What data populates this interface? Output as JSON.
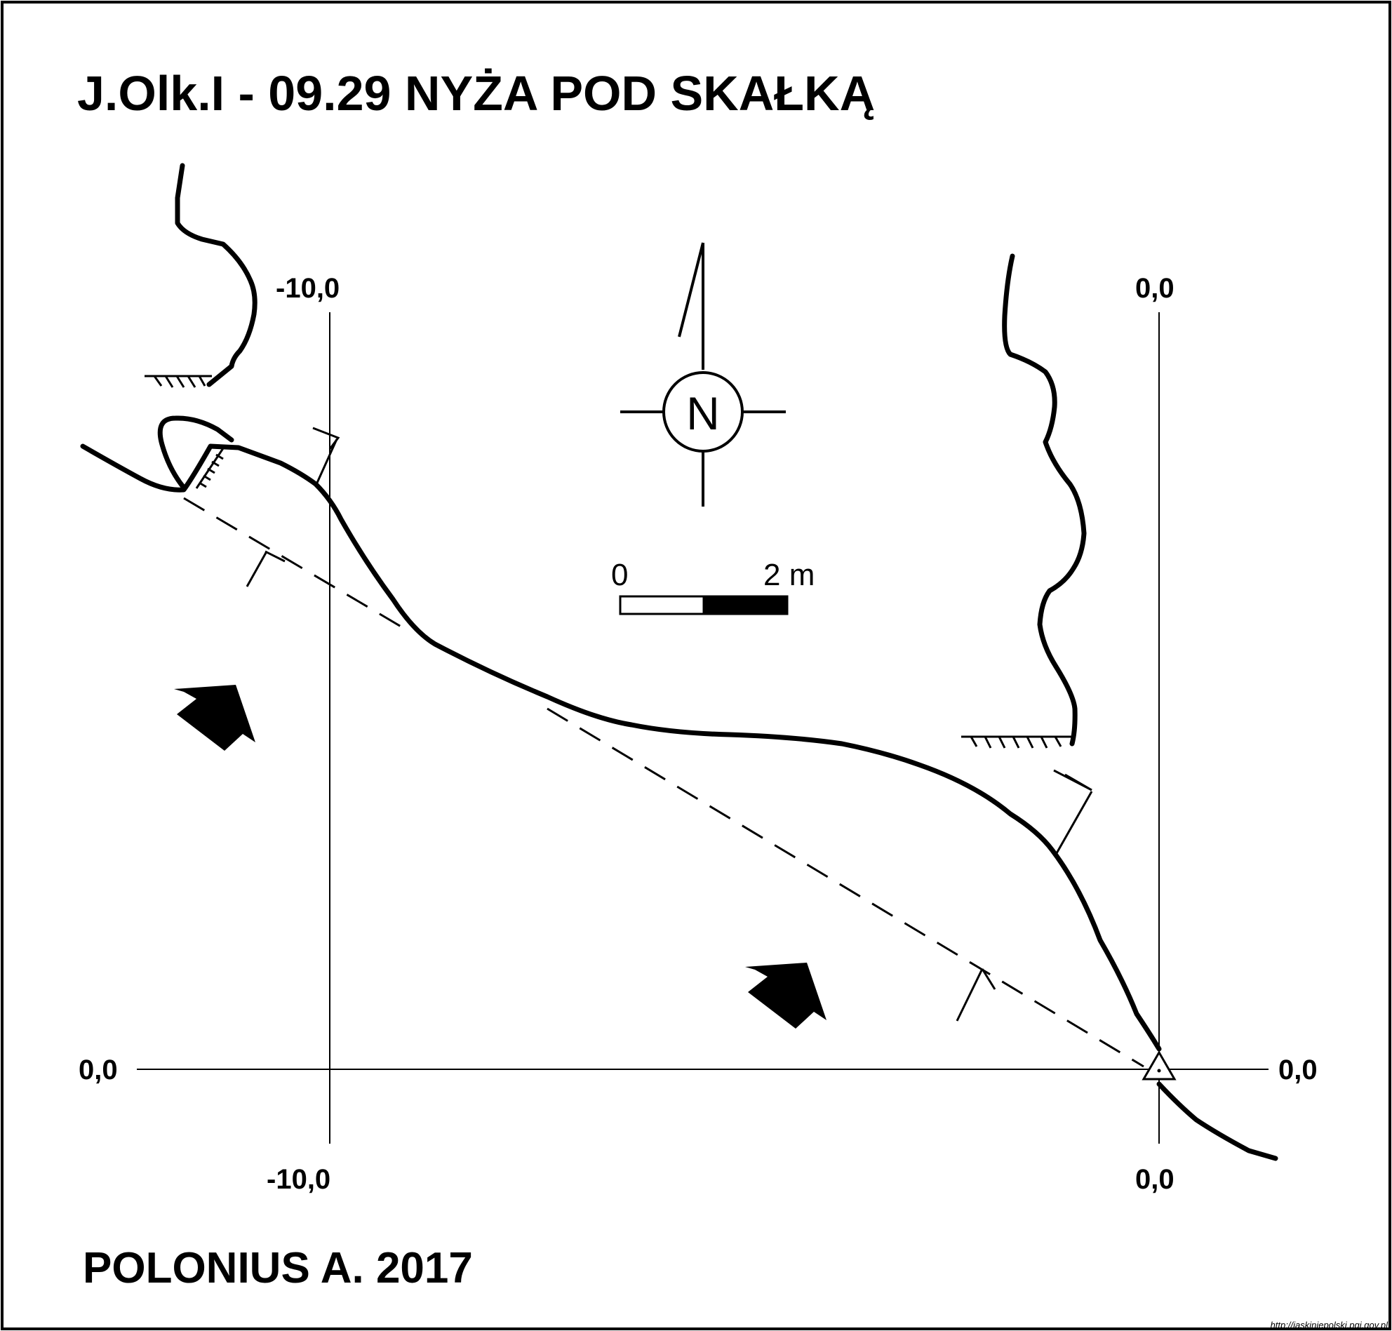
{
  "title": "J.Olk.I - 09.29  NYŻA POD SKAŁKĄ",
  "author": "POLONIUS A.  2017",
  "source_url": "http://jaskiniepolski.pgi.gov.pl",
  "grid_labels": {
    "top_left": "-10,0",
    "top_right": "0,0",
    "bottom_left": "-10,0",
    "bottom_right": "0,0",
    "left_side": "0,0",
    "right_side": "0,0"
  },
  "north_arrow": {
    "label": "N"
  },
  "scale_bar": {
    "start_label": "0",
    "end_label": "2 m"
  }
}
